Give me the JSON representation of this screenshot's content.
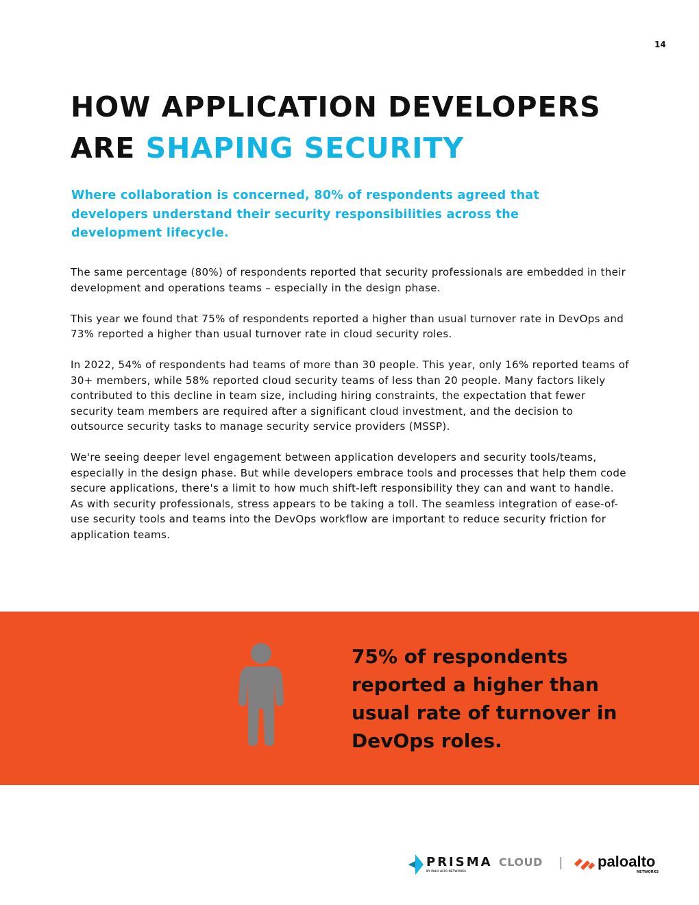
{
  "page_number": "14",
  "title": {
    "line1": "HOW APPLICATION DEVELOPERS",
    "line2_prefix": "ARE ",
    "line2_accent": "SHAPING SECURITY"
  },
  "lead": "Where collaboration is concerned, 80% of respondents agreed that developers understand their security responsibilities across the development lifecycle.",
  "paragraphs": [
    "The same percentage (80%) of respondents reported that security professionals are embedded in their development and operations teams – especially in the design phase.",
    "This year we found that 75% of respondents reported a higher than usual turnover rate in DevOps and 73% reported a higher than usual turnover rate in cloud security roles.",
    "In 2022, 54% of respondents had teams of more than 30 people. This year, only 16% reported teams of 30+ members, while 58% reported cloud security teams of less than 20 people. Many factors likely contributed to this decline in team size, including hiring constraints, the expectation that fewer security team members are required after a significant cloud investment, and the decision to outsource security tasks to manage security service providers (MSSP).",
    "We're seeing deeper level engagement between application developers and security tools/teams, especially in the design phase. But while developers embrace tools and processes that help them code secure applications, there's a limit to how much shift-left responsibility they can and want to handle. As with security professionals, stress appears to be taking a toll. The seamless integration of ease-of-use security tools and teams into the DevOps workflow are important to reduce security friction for application teams."
  ],
  "callout": {
    "lines": [
      "75% of respondents",
      "reported a higher than",
      "usual rate of turnover in",
      "DevOps roles."
    ],
    "icon": "person-icon",
    "band_color": "#f05123",
    "icon_color": "#808080"
  },
  "logos": {
    "prisma": "PRISMA",
    "cloud": "CLOUD",
    "prisma_sub": "BY PALO ALTO NETWORKS",
    "paloalto": "paloalto",
    "networks": "NETWORKS"
  },
  "colors": {
    "accent": "#13b4e3",
    "band": "#f05123"
  }
}
